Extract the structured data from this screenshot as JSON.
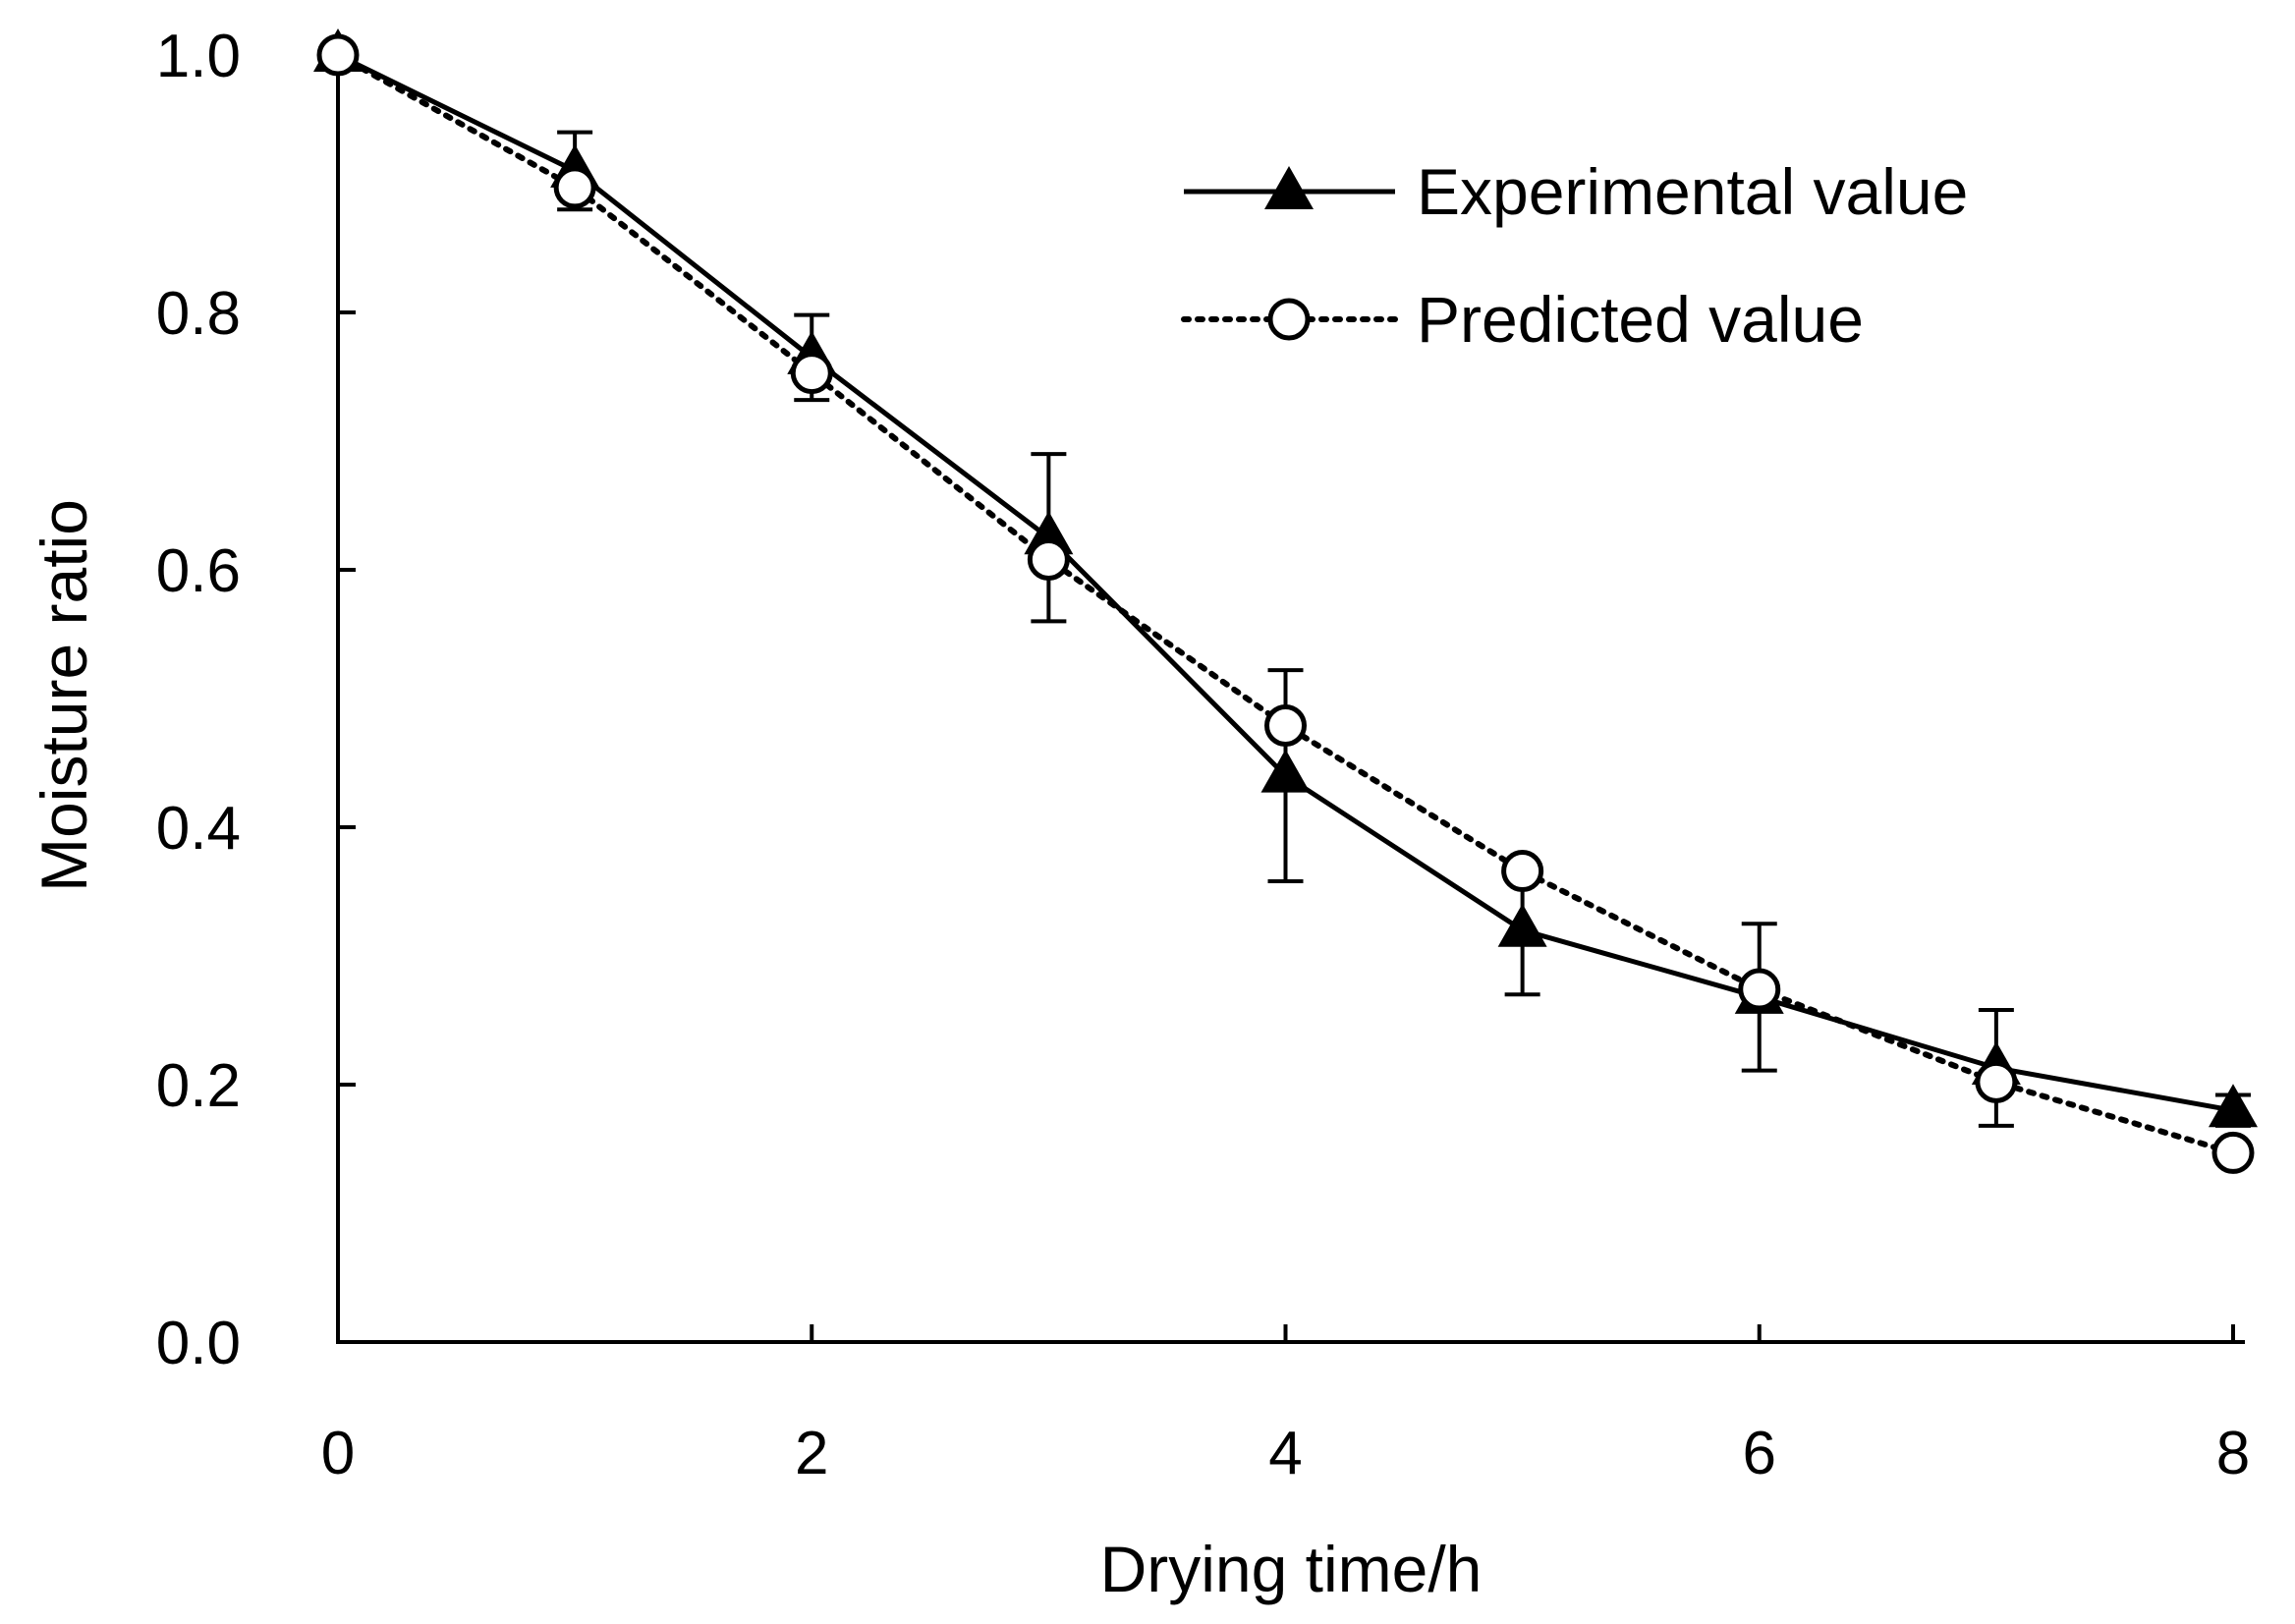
{
  "chart_data": {
    "type": "line",
    "title": "",
    "xlabel": "Drying time/h",
    "ylabel": "Moisture ratio",
    "xlim": [
      0,
      8
    ],
    "ylim": [
      0,
      1.0
    ],
    "x_ticks": [
      "0",
      "2",
      "4",
      "6",
      "8"
    ],
    "x_tick_values": [
      0,
      2,
      4,
      6,
      8
    ],
    "y_ticks": [
      "0.0",
      "0.2",
      "0.4",
      "0.6",
      "0.8",
      "1.0"
    ],
    "y_tick_values": [
      0,
      0.2,
      0.4,
      0.6,
      0.8,
      1.0
    ],
    "grid": false,
    "legend_position": "top-right",
    "x": [
      0,
      1,
      2,
      3,
      4,
      5,
      6,
      7,
      8
    ],
    "series": [
      {
        "name": "Experimental value",
        "marker": "triangle",
        "line": "solid",
        "values": [
          1.0,
          0.91,
          0.765,
          0.625,
          0.44,
          0.32,
          0.268,
          0.213,
          0.18
        ],
        "error": [
          0,
          0.03,
          0.033,
          0.065,
          0.082,
          0.05,
          0.057,
          0.045,
          0.012
        ]
      },
      {
        "name": "Predicted value",
        "marker": "open-circle",
        "line": "dotted",
        "values": [
          1.0,
          0.897,
          0.753,
          0.608,
          0.479,
          0.366,
          0.274,
          0.202,
          0.147
        ]
      }
    ]
  }
}
